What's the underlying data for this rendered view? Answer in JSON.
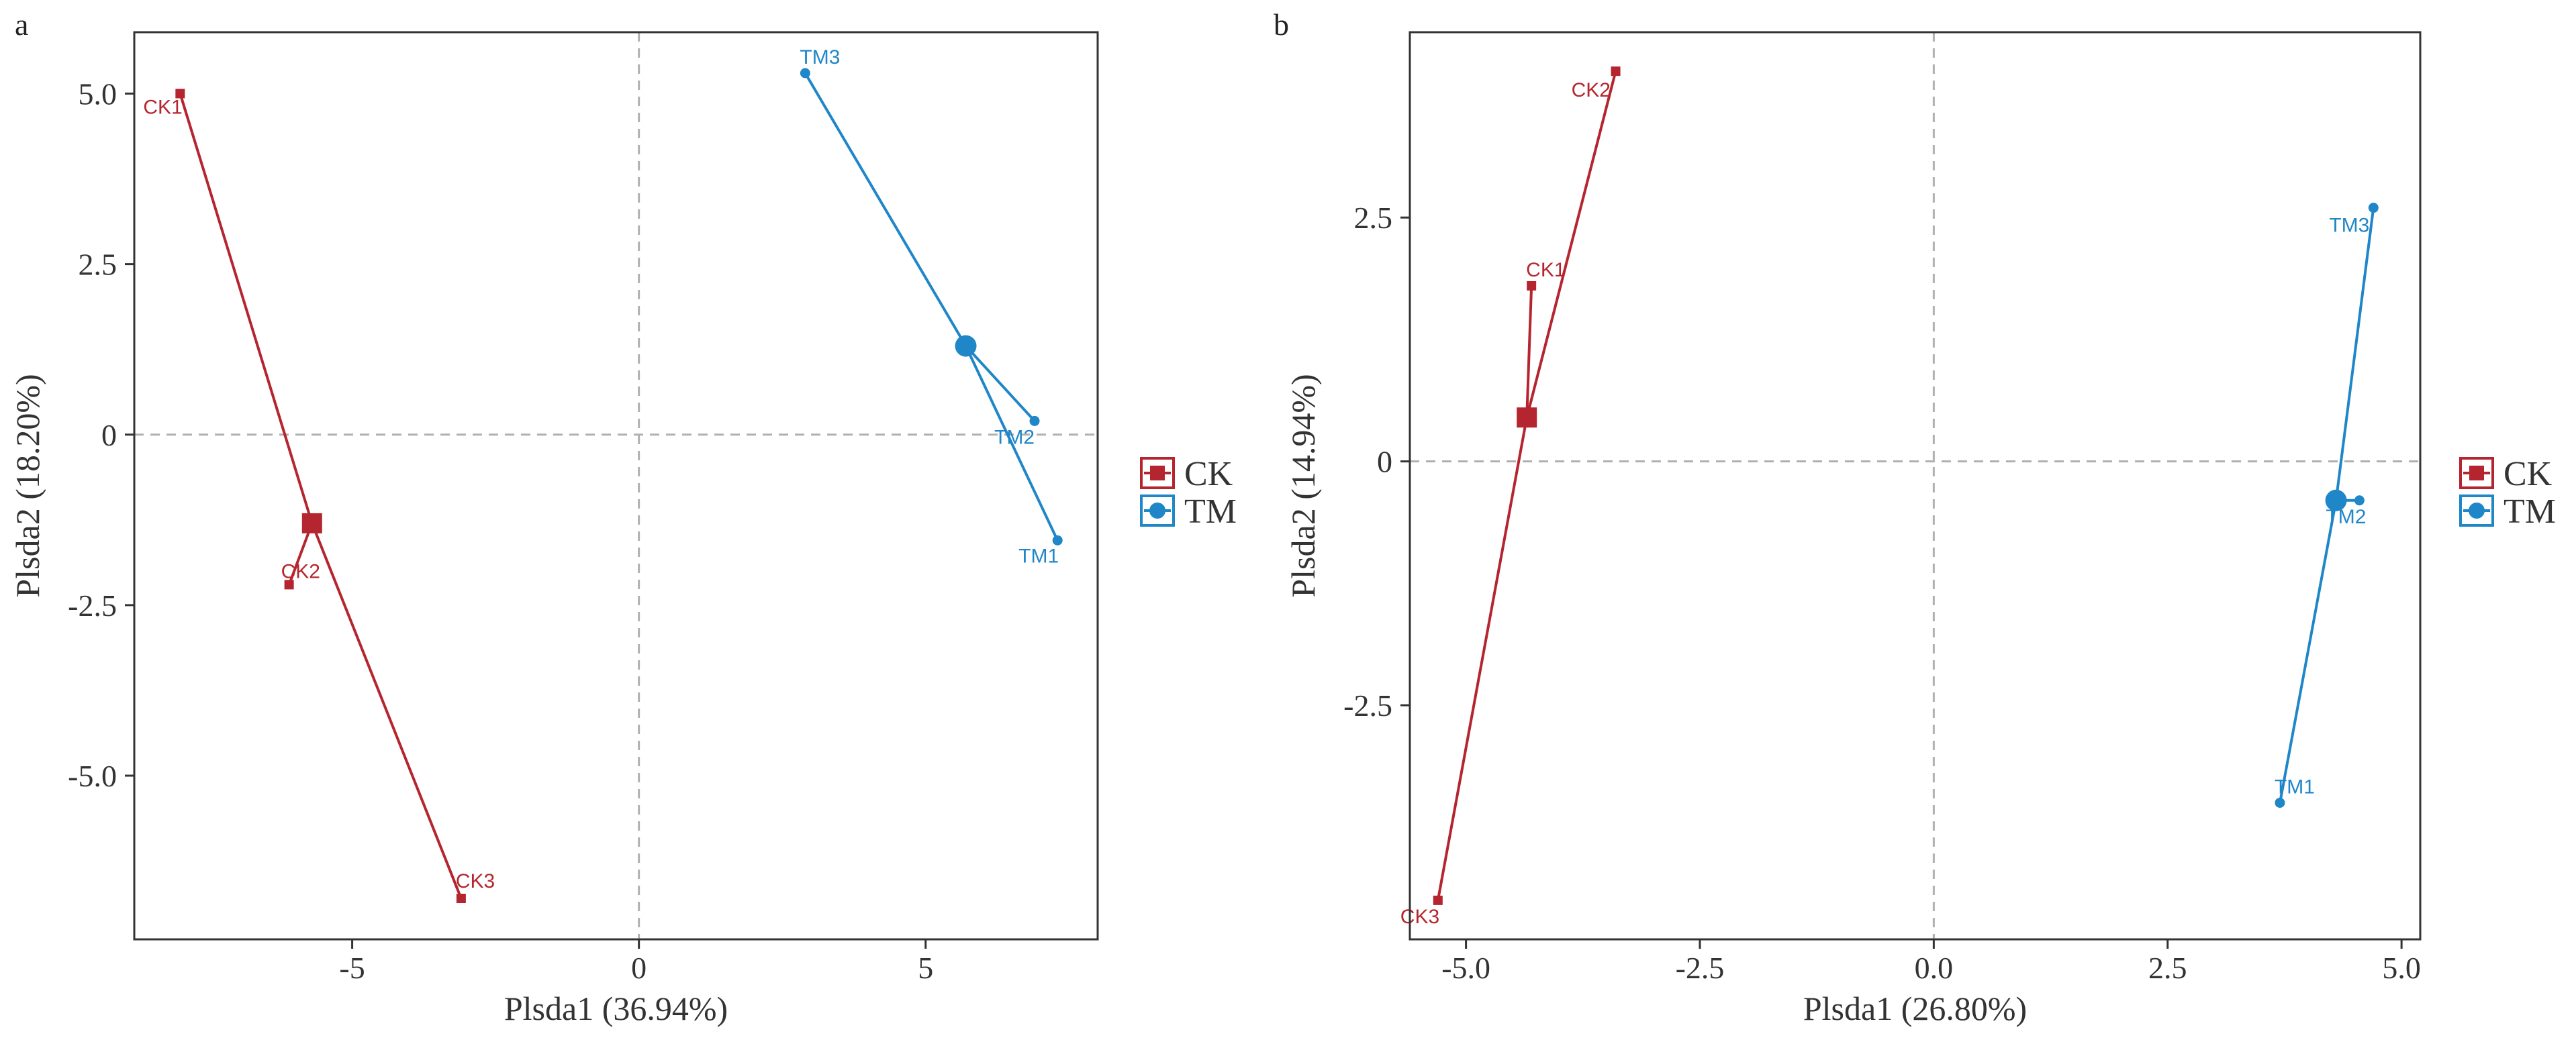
{
  "chart_data": [
    {
      "panel_label": "a",
      "type": "scatter",
      "xlabel": "Plsda1 (36.94%)",
      "ylabel": "Plsda2 (18.20%)",
      "xlim": [
        -8.8,
        8.0
      ],
      "ylim": [
        -7.4,
        5.9
      ],
      "xticks": [
        -5,
        0,
        5
      ],
      "xtick_labels": [
        "-5",
        "0",
        "5"
      ],
      "yticks": [
        5.0,
        2.5,
        0,
        -2.5,
        -5.0
      ],
      "ytick_labels": [
        "5.0",
        "2.5",
        "0",
        "-2.5",
        "-5.0"
      ],
      "grid": false,
      "zero_lines": true,
      "legend_position": "right",
      "series": [
        {
          "name": "CK",
          "color": "#b5252f",
          "marker": "square",
          "centroid": {
            "x": -5.7,
            "y": -1.3
          },
          "points": [
            {
              "label": "CK1",
              "x": -8.0,
              "y": 5.0
            },
            {
              "label": "CK2",
              "x": -6.1,
              "y": -2.2
            },
            {
              "label": "CK3",
              "x": -3.1,
              "y": -6.8
            }
          ]
        },
        {
          "name": "TM",
          "color": "#1f86c8",
          "marker": "circle",
          "centroid": {
            "x": 5.7,
            "y": 1.3
          },
          "points": [
            {
              "label": "TM1",
              "x": 7.3,
              "y": -1.55
            },
            {
              "label": "TM2",
              "x": 6.9,
              "y": 0.2
            },
            {
              "label": "TM3",
              "x": 2.9,
              "y": 5.3
            }
          ]
        }
      ]
    },
    {
      "panel_label": "b",
      "type": "scatter",
      "xlabel": "Plsda1 (26.80%)",
      "ylabel": "Plsda2 (14.94%)",
      "xlim": [
        -5.6,
        5.2
      ],
      "ylim": [
        -4.9,
        4.4
      ],
      "xticks": [
        -5.0,
        -2.5,
        0.0,
        2.5,
        5.0
      ],
      "xtick_labels": [
        "-5.0",
        "-2.5",
        "0.0",
        "2.5",
        "5.0"
      ],
      "yticks": [
        2.5,
        0,
        -2.5
      ],
      "ytick_labels": [
        "2.5",
        "0",
        "-2.5"
      ],
      "grid": false,
      "zero_lines": true,
      "legend_position": "right",
      "series": [
        {
          "name": "CK",
          "color": "#b5252f",
          "marker": "square",
          "centroid": {
            "x": -4.35,
            "y": 0.45
          },
          "points": [
            {
              "label": "CK1",
              "x": -4.3,
              "y": 1.8
            },
            {
              "label": "CK2",
              "x": -3.4,
              "y": 4.0
            },
            {
              "label": "CK3",
              "x": -5.3,
              "y": -4.5
            }
          ]
        },
        {
          "name": "TM",
          "color": "#1f86c8",
          "marker": "circle",
          "centroid": {
            "x": 4.3,
            "y": -0.4
          },
          "points": [
            {
              "label": "TM1",
              "x": 3.7,
              "y": -3.5
            },
            {
              "label": "TM2",
              "x": 4.55,
              "y": -0.4
            },
            {
              "label": "TM3",
              "x": 4.7,
              "y": 2.6
            }
          ]
        }
      ]
    }
  ]
}
